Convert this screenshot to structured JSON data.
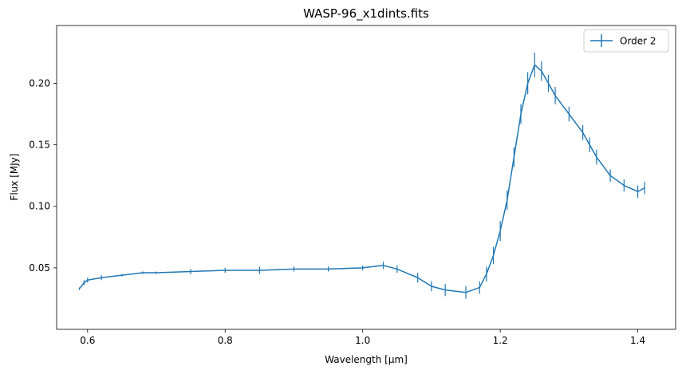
{
  "chart_data": {
    "type": "line",
    "title": "WASP-96_x1dints.fits",
    "xlabel": "Wavelength [μm]",
    "ylabel": "Flux [MJy]",
    "xlim": [
      0.555,
      1.455
    ],
    "ylim": [
      0.0,
      0.247
    ],
    "x_ticks": [
      0.6,
      0.8,
      1.0,
      1.2,
      1.4
    ],
    "x_tick_labels": [
      "0.6",
      "0.8",
      "1.0",
      "1.2",
      "1.4"
    ],
    "y_ticks": [
      0.05,
      0.1,
      0.15,
      0.2
    ],
    "y_tick_labels": [
      "0.05",
      "0.10",
      "0.15",
      "0.20"
    ],
    "grid": false,
    "legend": {
      "position": "top-right",
      "entries": [
        "Order 2"
      ]
    },
    "series": [
      {
        "name": "Order 2",
        "color": "#1f77b4",
        "errorbars": true,
        "x": [
          0.588,
          0.595,
          0.6,
          0.62,
          0.65,
          0.68,
          0.7,
          0.75,
          0.8,
          0.85,
          0.9,
          0.95,
          1.0,
          1.03,
          1.05,
          1.08,
          1.1,
          1.12,
          1.15,
          1.17,
          1.18,
          1.19,
          1.2,
          1.21,
          1.22,
          1.23,
          1.24,
          1.25,
          1.26,
          1.27,
          1.28,
          1.3,
          1.32,
          1.33,
          1.34,
          1.36,
          1.38,
          1.4,
          1.41
        ],
        "y": [
          0.033,
          0.038,
          0.04,
          0.042,
          0.044,
          0.046,
          0.046,
          0.047,
          0.048,
          0.048,
          0.049,
          0.049,
          0.05,
          0.052,
          0.049,
          0.042,
          0.035,
          0.032,
          0.03,
          0.034,
          0.045,
          0.06,
          0.08,
          0.105,
          0.14,
          0.175,
          0.2,
          0.215,
          0.21,
          0.2,
          0.19,
          0.175,
          0.16,
          0.15,
          0.14,
          0.125,
          0.117,
          0.112,
          0.115
        ],
        "y_err": [
          0.001,
          0.002,
          0.002,
          0.002,
          0.001,
          0.001,
          0.001,
          0.002,
          0.002,
          0.003,
          0.002,
          0.002,
          0.002,
          0.003,
          0.003,
          0.004,
          0.004,
          0.005,
          0.005,
          0.005,
          0.006,
          0.007,
          0.008,
          0.008,
          0.008,
          0.008,
          0.009,
          0.01,
          0.008,
          0.007,
          0.007,
          0.006,
          0.006,
          0.006,
          0.006,
          0.005,
          0.005,
          0.005,
          0.005
        ]
      }
    ]
  }
}
